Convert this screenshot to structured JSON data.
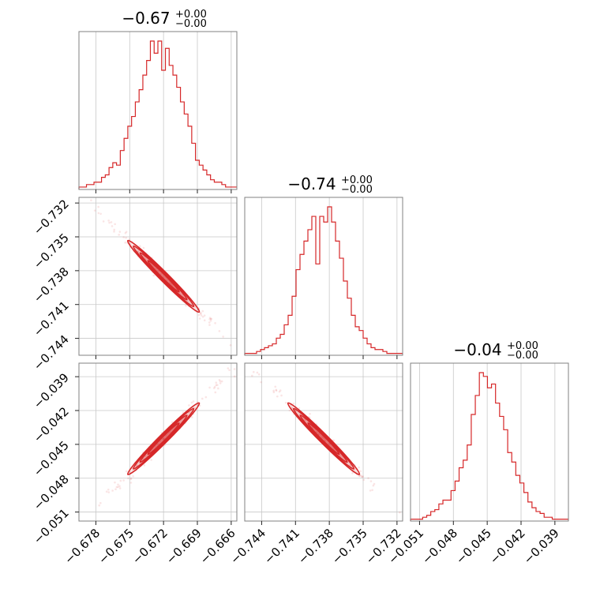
{
  "chart_data": {
    "type": "corner",
    "color": "#d62728",
    "parameters": [
      {
        "title": {
          "value": "−0.67",
          "upper": "+0.00",
          "lower": "−0.00"
        },
        "range": [
          -0.6795,
          -0.6655
        ],
        "ticks": [
          -0.678,
          -0.675,
          -0.672,
          -0.669,
          -0.666
        ],
        "tick_labels": [
          "−0.678",
          "−0.675",
          "−0.672",
          "−0.669",
          "−0.666"
        ],
        "hist": [
          1,
          1,
          2,
          2,
          3,
          3,
          5,
          6,
          9,
          11,
          10,
          16,
          21,
          26,
          30,
          36,
          41,
          47,
          53,
          61,
          56,
          61,
          49,
          58,
          51,
          47,
          42,
          36,
          31,
          26,
          19,
          12,
          10,
          8,
          6,
          4,
          3,
          3,
          2,
          1,
          1,
          1
        ]
      },
      {
        "title": {
          "value": "−0.74",
          "upper": "+0.00",
          "lower": "−0.00"
        },
        "range": [
          -0.7455,
          -0.7315
        ],
        "ticks": [
          -0.744,
          -0.741,
          -0.738,
          -0.735,
          -0.732
        ],
        "tick_labels": [
          "−0.744",
          "−0.741",
          "−0.738",
          "−0.735",
          "−0.732"
        ],
        "hist": [
          1,
          1,
          1,
          2,
          3,
          4,
          5,
          6,
          9,
          11,
          16,
          21,
          31,
          45,
          53,
          60,
          66,
          73,
          48,
          73,
          70,
          78,
          70,
          60,
          51,
          39,
          30,
          21,
          15,
          13,
          9,
          6,
          4,
          3,
          3,
          2,
          1,
          1,
          1,
          1
        ]
      },
      {
        "title": {
          "value": "−0.04",
          "upper": "+0.00",
          "lower": "−0.00"
        },
        "range": [
          -0.0518,
          -0.0378
        ],
        "ticks": [
          -0.051,
          -0.048,
          -0.045,
          -0.042,
          -0.039
        ],
        "tick_labels": [
          "−0.051",
          "−0.048",
          "−0.045",
          "−0.042",
          "−0.039"
        ],
        "hist": [
          1,
          1,
          1,
          2,
          3,
          5,
          6,
          9,
          11,
          11,
          16,
          21,
          28,
          32,
          40,
          56,
          66,
          78,
          76,
          70,
          72,
          62,
          55,
          48,
          36,
          31,
          24,
          20,
          15,
          10,
          7,
          5,
          4,
          2,
          2,
          1,
          1,
          1,
          1
        ]
      }
    ],
    "pairs": [
      {
        "row": 1,
        "col": 0,
        "x_param": 0,
        "y_param": 1,
        "a": -0.672,
        "b": -0.7385,
        "slope": -1.0,
        "spread": 0.0003
      },
      {
        "row": 2,
        "col": 0,
        "x_param": 0,
        "y_param": 2,
        "a": -0.672,
        "b": -0.0445,
        "slope": 1.0,
        "spread": 0.0003
      },
      {
        "row": 2,
        "col": 1,
        "x_param": 1,
        "y_param": 2,
        "a": -0.7385,
        "b": -0.0445,
        "slope": -1.0,
        "spread": 0.0003
      }
    ],
    "grid": true
  }
}
